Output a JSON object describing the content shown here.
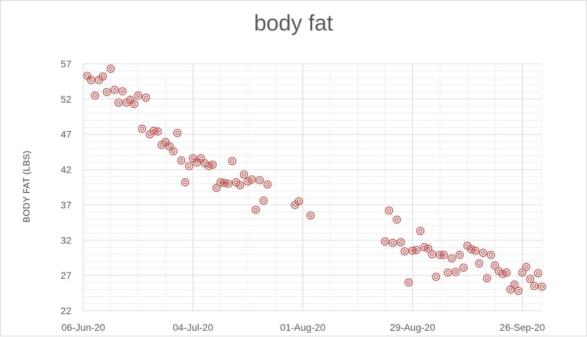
{
  "chart_data": {
    "type": "scatter",
    "title": "body fat",
    "xlabel": "",
    "ylabel": "BODY FAT (LBS)",
    "x_ticks": [
      "06-Jun-20",
      "04-Jul-20",
      "01-Aug-20",
      "29-Aug-20",
      "26-Sep-20"
    ],
    "x_range": [
      "2020-06-06",
      "2020-10-01"
    ],
    "ylim": [
      22,
      57
    ],
    "y_ticks": [
      22,
      27,
      32,
      37,
      42,
      47,
      52,
      57
    ],
    "grid": true,
    "marker": "double-circle",
    "colors": {
      "marker": "#c0504d",
      "grid_major": "#d9d9d9",
      "grid_minor": "#eeeeee",
      "axis_text": "#595959"
    },
    "series": [
      {
        "points": [
          [
            "2020-06-07",
            55.3
          ],
          [
            "2020-06-08",
            54.7
          ],
          [
            "2020-06-09",
            52.5
          ],
          [
            "2020-06-10",
            54.7
          ],
          [
            "2020-06-11",
            55.2
          ],
          [
            "2020-06-12",
            53.0
          ],
          [
            "2020-06-13",
            56.3
          ],
          [
            "2020-06-14",
            53.3
          ],
          [
            "2020-06-15",
            51.5
          ],
          [
            "2020-06-16",
            53.1
          ],
          [
            "2020-06-17",
            51.5
          ],
          [
            "2020-06-18",
            51.9
          ],
          [
            "2020-06-19",
            51.3
          ],
          [
            "2020-06-20",
            52.5
          ],
          [
            "2020-06-21",
            47.8
          ],
          [
            "2020-06-22",
            52.2
          ],
          [
            "2020-06-23",
            47.0
          ],
          [
            "2020-06-24",
            47.5
          ],
          [
            "2020-06-25",
            47.4
          ],
          [
            "2020-06-26",
            45.5
          ],
          [
            "2020-06-27",
            45.9
          ],
          [
            "2020-06-28",
            45.3
          ],
          [
            "2020-06-29",
            44.6
          ],
          [
            "2020-06-30",
            47.2
          ],
          [
            "2020-07-01",
            43.3
          ],
          [
            "2020-07-02",
            40.2
          ],
          [
            "2020-07-03",
            42.5
          ],
          [
            "2020-07-04",
            43.6
          ],
          [
            "2020-07-05",
            43.0
          ],
          [
            "2020-07-06",
            43.6
          ],
          [
            "2020-07-07",
            42.9
          ],
          [
            "2020-07-08",
            42.5
          ],
          [
            "2020-07-09",
            42.7
          ],
          [
            "2020-07-10",
            39.4
          ],
          [
            "2020-07-11",
            40.2
          ],
          [
            "2020-07-12",
            40.1
          ],
          [
            "2020-07-13",
            40.0
          ],
          [
            "2020-07-14",
            43.2
          ],
          [
            "2020-07-15",
            40.2
          ],
          [
            "2020-07-16",
            39.8
          ],
          [
            "2020-07-17",
            41.3
          ],
          [
            "2020-07-18",
            40.3
          ],
          [
            "2020-07-19",
            40.6
          ],
          [
            "2020-07-20",
            36.3
          ],
          [
            "2020-07-21",
            40.5
          ],
          [
            "2020-07-22",
            37.6
          ],
          [
            "2020-07-23",
            39.9
          ],
          [
            "2020-07-30",
            37.0
          ],
          [
            "2020-07-31",
            37.5
          ],
          [
            "2020-08-03",
            35.5
          ],
          [
            "2020-08-22",
            31.8
          ],
          [
            "2020-08-23",
            36.2
          ],
          [
            "2020-08-24",
            31.6
          ],
          [
            "2020-08-25",
            34.9
          ],
          [
            "2020-08-26",
            31.7
          ],
          [
            "2020-08-27",
            30.4
          ],
          [
            "2020-08-28",
            26.0
          ],
          [
            "2020-08-29",
            30.5
          ],
          [
            "2020-08-30",
            30.6
          ],
          [
            "2020-08-31",
            33.3
          ],
          [
            "2020-09-01",
            31.0
          ],
          [
            "2020-09-02",
            30.8
          ],
          [
            "2020-09-03",
            30.0
          ],
          [
            "2020-09-04",
            26.8
          ],
          [
            "2020-09-05",
            29.9
          ],
          [
            "2020-09-06",
            29.9
          ],
          [
            "2020-09-07",
            27.4
          ],
          [
            "2020-09-08",
            29.4
          ],
          [
            "2020-09-09",
            27.5
          ],
          [
            "2020-09-10",
            29.9
          ],
          [
            "2020-09-11",
            28.1
          ],
          [
            "2020-09-12",
            31.2
          ],
          [
            "2020-09-13",
            30.7
          ],
          [
            "2020-09-14",
            30.5
          ],
          [
            "2020-09-15",
            28.7
          ],
          [
            "2020-09-16",
            30.2
          ],
          [
            "2020-09-17",
            26.6
          ],
          [
            "2020-09-18",
            29.9
          ],
          [
            "2020-09-19",
            28.4
          ],
          [
            "2020-09-20",
            27.6
          ],
          [
            "2020-09-21",
            27.2
          ],
          [
            "2020-09-22",
            27.4
          ],
          [
            "2020-09-23",
            25.0
          ],
          [
            "2020-09-24",
            25.7
          ],
          [
            "2020-09-25",
            24.8
          ],
          [
            "2020-09-26",
            27.4
          ],
          [
            "2020-09-27",
            28.2
          ],
          [
            "2020-09-28",
            26.5
          ],
          [
            "2020-09-29",
            25.5
          ],
          [
            "2020-09-30",
            27.3
          ],
          [
            "2020-10-01",
            25.4
          ]
        ]
      }
    ]
  }
}
